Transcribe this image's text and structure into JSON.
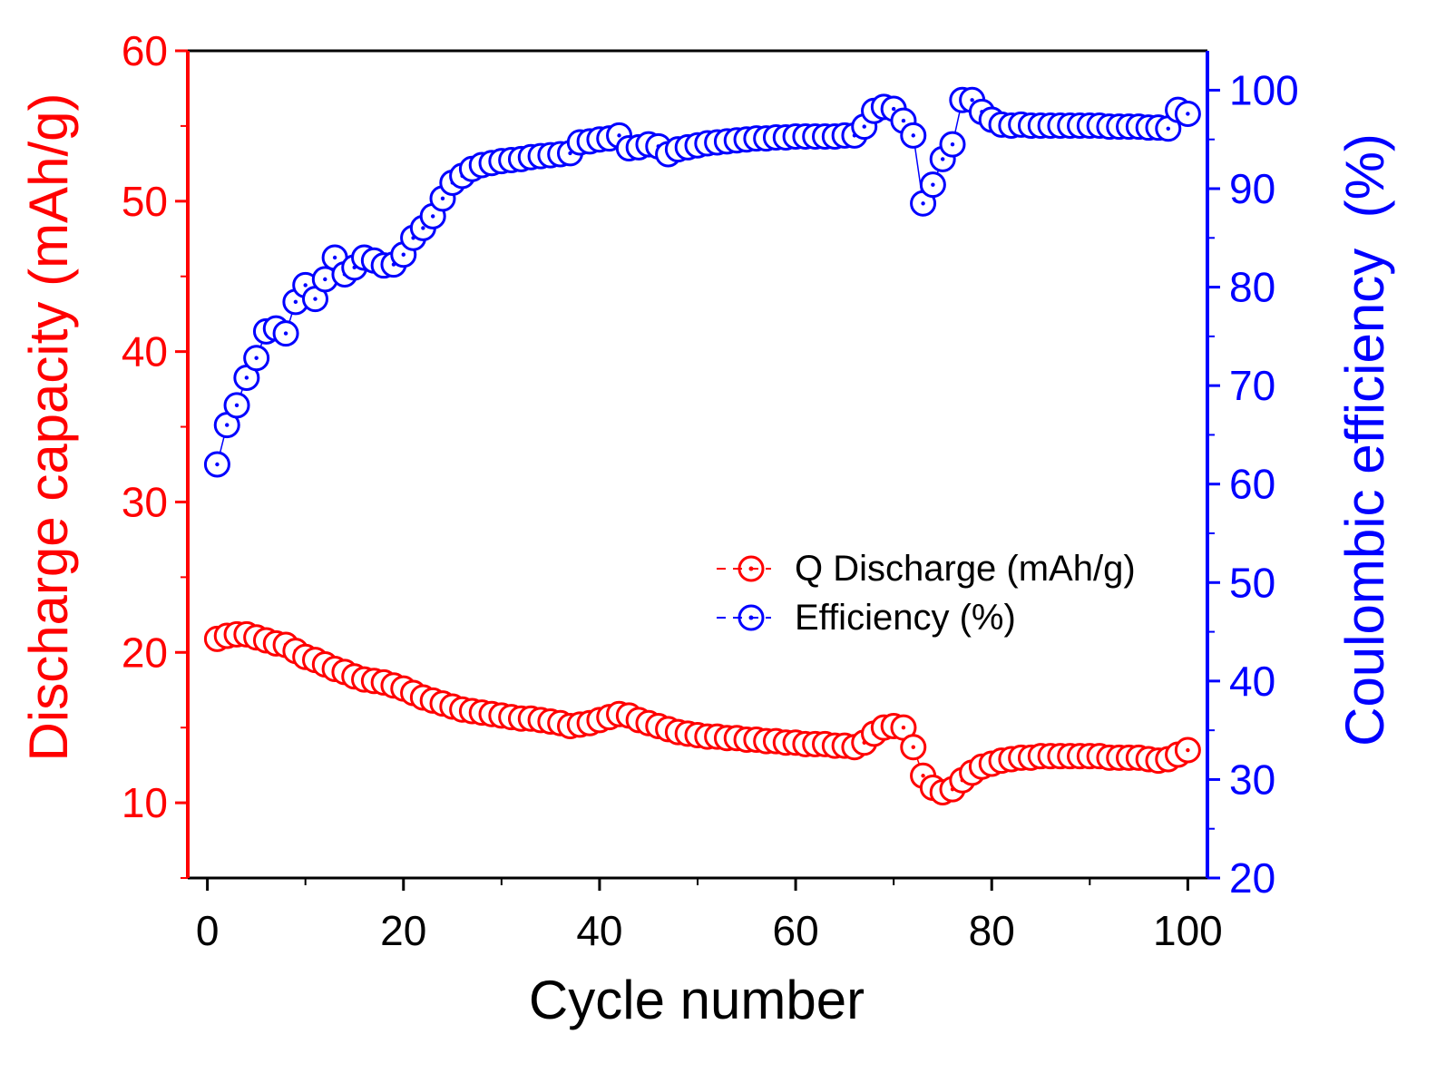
{
  "chart_data": {
    "type": "scatter",
    "xlabel": "Cycle number",
    "x_axis": {
      "range": [
        -2,
        102
      ],
      "ticks": [
        0,
        20,
        40,
        60,
        80,
        100
      ]
    },
    "y_left": {
      "label": "Discharge capacity (mAh/g)",
      "range": [
        5,
        60
      ],
      "ticks": [
        10,
        20,
        30,
        40,
        50,
        60
      ],
      "color": "#ff0000"
    },
    "y_right": {
      "label": "Coulombic efficiency  (%)",
      "range": [
        20,
        104
      ],
      "ticks": [
        20,
        30,
        40,
        50,
        60,
        70,
        80,
        90,
        100
      ],
      "color": "#0000ff"
    },
    "legend": {
      "position": "center-right"
    },
    "series": [
      {
        "name": "Q Discharge (mAh/g)",
        "axis": "left",
        "color": "#ff0000",
        "marker": "circle-dot",
        "x": [
          1,
          2,
          3,
          4,
          5,
          6,
          7,
          8,
          9,
          10,
          11,
          12,
          13,
          14,
          15,
          16,
          17,
          18,
          19,
          20,
          21,
          22,
          23,
          24,
          25,
          26,
          27,
          28,
          29,
          30,
          31,
          32,
          33,
          34,
          35,
          36,
          37,
          38,
          39,
          40,
          41,
          42,
          43,
          44,
          45,
          46,
          47,
          48,
          49,
          50,
          51,
          52,
          53,
          54,
          55,
          56,
          57,
          58,
          59,
          60,
          61,
          62,
          63,
          64,
          65,
          66,
          67,
          68,
          69,
          70,
          71,
          72,
          73,
          74,
          75,
          76,
          77,
          78,
          79,
          80,
          81,
          82,
          83,
          84,
          85,
          86,
          87,
          88,
          89,
          90,
          91,
          92,
          93,
          94,
          95,
          96,
          97,
          98,
          99,
          100
        ],
        "y": [
          20.9,
          21.1,
          21.2,
          21.2,
          21.0,
          20.8,
          20.6,
          20.5,
          20.1,
          19.7,
          19.5,
          19.2,
          18.9,
          18.7,
          18.4,
          18.2,
          18.1,
          18.0,
          17.8,
          17.6,
          17.3,
          17.0,
          16.8,
          16.6,
          16.4,
          16.2,
          16.1,
          16.0,
          15.9,
          15.8,
          15.7,
          15.6,
          15.6,
          15.5,
          15.4,
          15.3,
          15.1,
          15.2,
          15.3,
          15.5,
          15.7,
          15.9,
          15.8,
          15.5,
          15.3,
          15.1,
          14.9,
          14.7,
          14.6,
          14.5,
          14.4,
          14.4,
          14.3,
          14.3,
          14.2,
          14.2,
          14.1,
          14.1,
          14.0,
          14.0,
          13.9,
          13.9,
          13.9,
          13.8,
          13.8,
          13.7,
          14.0,
          14.6,
          15.0,
          15.1,
          15.0,
          13.7,
          11.8,
          11.0,
          10.7,
          10.9,
          11.5,
          12.0,
          12.4,
          12.6,
          12.8,
          12.9,
          13.0,
          13.0,
          13.1,
          13.1,
          13.1,
          13.1,
          13.1,
          13.1,
          13.1,
          13.0,
          13.0,
          13.0,
          13.0,
          12.9,
          12.8,
          12.9,
          13.2,
          13.5
        ]
      },
      {
        "name": "Efficiency (%)",
        "axis": "right",
        "color": "#0000ff",
        "marker": "circle-dot",
        "x": [
          1,
          2,
          3,
          4,
          5,
          6,
          7,
          8,
          9,
          10,
          11,
          12,
          13,
          14,
          15,
          16,
          17,
          18,
          19,
          20,
          21,
          22,
          23,
          24,
          25,
          26,
          27,
          28,
          29,
          30,
          31,
          32,
          33,
          34,
          35,
          36,
          37,
          38,
          39,
          40,
          41,
          42,
          43,
          44,
          45,
          46,
          47,
          48,
          49,
          50,
          51,
          52,
          53,
          54,
          55,
          56,
          57,
          58,
          59,
          60,
          61,
          62,
          63,
          64,
          65,
          66,
          67,
          68,
          69,
          70,
          71,
          72,
          73,
          74,
          75,
          76,
          77,
          78,
          79,
          80,
          81,
          82,
          83,
          84,
          85,
          86,
          87,
          88,
          89,
          90,
          91,
          92,
          93,
          94,
          95,
          96,
          97,
          98,
          99,
          100
        ],
        "y": [
          62.0,
          66.0,
          68.0,
          70.8,
          72.8,
          75.5,
          75.8,
          75.3,
          78.5,
          80.2,
          78.8,
          80.8,
          83.0,
          81.3,
          82.0,
          83.0,
          82.7,
          82.2,
          82.3,
          83.3,
          85.0,
          86.0,
          87.2,
          89.0,
          90.6,
          91.3,
          92.0,
          92.4,
          92.6,
          92.8,
          92.9,
          93.0,
          93.2,
          93.3,
          93.4,
          93.5,
          93.6,
          94.7,
          94.8,
          95.0,
          95.1,
          95.4,
          94.1,
          94.2,
          94.5,
          94.3,
          93.5,
          94.0,
          94.2,
          94.4,
          94.6,
          94.7,
          94.8,
          94.9,
          95.0,
          95.1,
          95.1,
          95.2,
          95.2,
          95.3,
          95.3,
          95.3,
          95.3,
          95.3,
          95.4,
          95.4,
          96.3,
          97.9,
          98.3,
          98.1,
          96.9,
          95.4,
          88.5,
          90.4,
          93.0,
          94.5,
          99.0,
          99.0,
          97.8,
          97.0,
          96.5,
          96.4,
          96.5,
          96.4,
          96.4,
          96.4,
          96.4,
          96.4,
          96.4,
          96.4,
          96.4,
          96.3,
          96.3,
          96.3,
          96.3,
          96.2,
          96.2,
          96.1,
          98.0,
          97.6
        ]
      }
    ]
  }
}
